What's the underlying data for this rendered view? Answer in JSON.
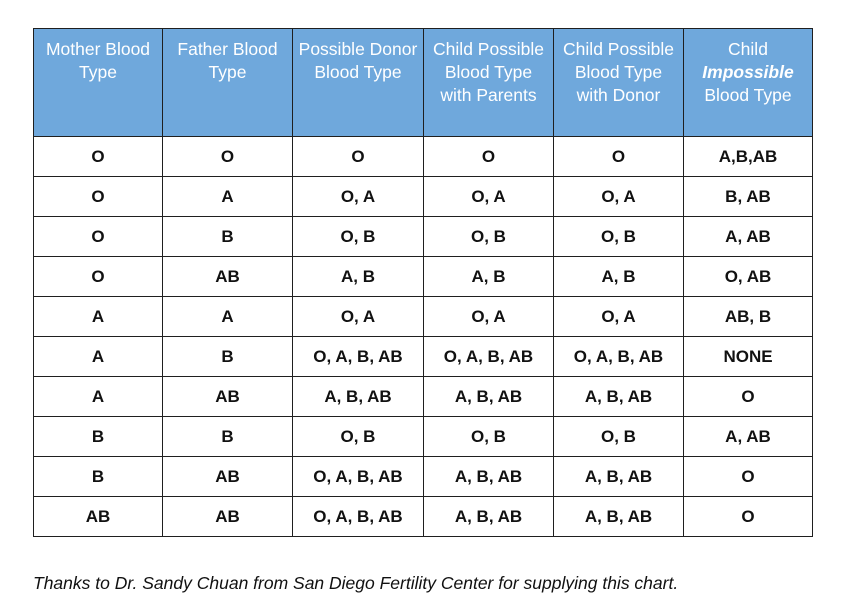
{
  "table": {
    "headers": [
      {
        "text": "Mother Blood Type"
      },
      {
        "text": "Father Blood Type"
      },
      {
        "text": "Possible Donor Blood Type"
      },
      {
        "text": "Child Possible Blood Type with Parents"
      },
      {
        "text": "Child Possible Blood Type with Donor"
      },
      {
        "pre": "Child",
        "emph": "Impossible",
        "post": "Blood Type"
      }
    ],
    "rows": [
      [
        "O",
        "O",
        "O",
        "O",
        "O",
        "A,B,AB"
      ],
      [
        "O",
        "A",
        "O, A",
        "O, A",
        "O, A",
        "B, AB"
      ],
      [
        "O",
        "B",
        "O, B",
        "O, B",
        "O, B",
        "A, AB"
      ],
      [
        "O",
        "AB",
        "A, B",
        "A, B",
        "A, B",
        "O, AB"
      ],
      [
        "A",
        "A",
        "O, A",
        "O, A",
        "O, A",
        "AB, B"
      ],
      [
        "A",
        "B",
        "O, A, B, AB",
        "O, A, B, AB",
        "O, A, B, AB",
        "NONE"
      ],
      [
        "A",
        "AB",
        "A, B, AB",
        "A, B, AB",
        "A, B, AB",
        "O"
      ],
      [
        "B",
        "B",
        "O, B",
        "O, B",
        "O, B",
        "A, AB"
      ],
      [
        "B",
        "AB",
        "O, A, B, AB",
        "A, B, AB",
        "A, B, AB",
        "O"
      ],
      [
        "AB",
        "AB",
        "O, A, B, AB",
        "A, B, AB",
        "A, B, AB",
        "O"
      ]
    ]
  },
  "caption": "Thanks to Dr. Sandy Chuan from San Diego Fertility Center for supplying this chart.",
  "colors": {
    "header_bg": "#6fa8dc",
    "header_text": "#ffffff",
    "border": "#1f1f1f"
  }
}
